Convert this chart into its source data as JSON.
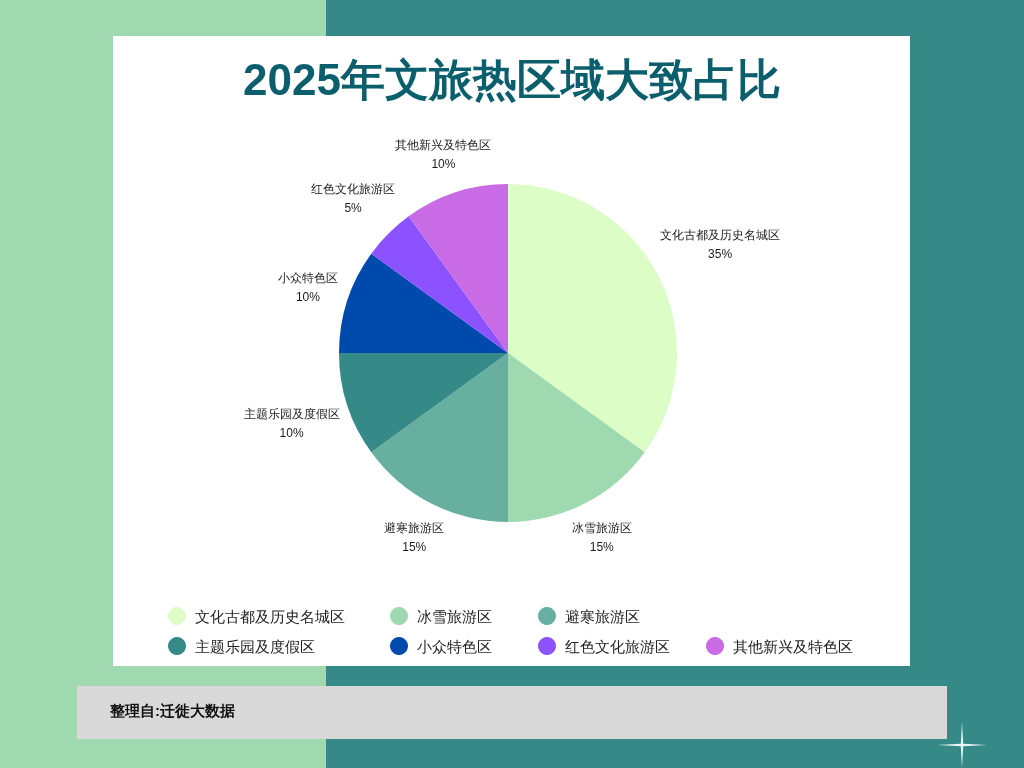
{
  "chart_data": {
    "type": "pie",
    "title": "2025年文旅热区域大致占比",
    "categories": [
      "文化古都及历史名城区",
      "冰雪旅游区",
      "避寒旅游区",
      "主题乐园及度假区",
      "小众特色区",
      "红色文化旅游区",
      "其他新兴及特色区"
    ],
    "values": [
      35,
      15,
      15,
      10,
      10,
      5,
      10
    ],
    "colors": [
      "#ddfdc6",
      "#9fd9b0",
      "#67b09f",
      "#358a88",
      "#004aad",
      "#8c52ff",
      "#c96be4"
    ],
    "value_labels": [
      "35%",
      "15%",
      "15%",
      "10%",
      "10%",
      "5%",
      "10%"
    ],
    "legend": "bottom",
    "annotations": [
      "整理自:迁徙大数据"
    ]
  }
}
